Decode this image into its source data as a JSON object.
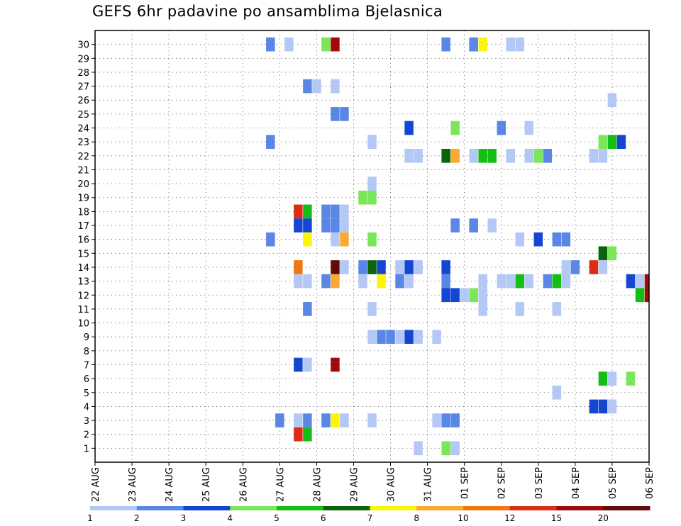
{
  "chart_data": {
    "type": "heatmap",
    "title": "GEFS 6hr padavine po ansamblima Bjelasnica",
    "x_labels": [
      "22 AUG",
      "23 AUG",
      "24 AUG",
      "25 AUG",
      "26 AUG",
      "27 AUG",
      "28 AUG",
      "29 AUG",
      "30 AUG",
      "31 AUG",
      "01 SEP",
      "02 SEP",
      "03 SEP",
      "04 SEP",
      "05 SEP",
      "06 SEP"
    ],
    "y_labels": [
      1,
      2,
      3,
      4,
      5,
      6,
      7,
      8,
      9,
      10,
      11,
      12,
      13,
      14,
      15,
      16,
      17,
      18,
      19,
      20,
      21,
      22,
      23,
      24,
      25,
      26,
      27,
      28,
      29,
      30
    ],
    "xlim_steps": [
      0,
      60
    ],
    "grid": true,
    "legend": {
      "position": "bottom",
      "labels": [
        "1",
        "2",
        "3",
        "4",
        "5",
        "6",
        "7",
        "8",
        "10",
        "12",
        "15",
        "20"
      ],
      "colors": [
        "#b4c8f5",
        "#5a87e6",
        "#1446d2",
        "#7ce65a",
        "#14be14",
        "#0a640a",
        "#faf50a",
        "#faaa32",
        "#f07814",
        "#dc2d14",
        "#a00a0a",
        "#640a0a"
      ]
    },
    "cells_note": "each cell: [member (y), 6-hour step index from 22 AUG 00z (x), color class 0-11]",
    "cells": [
      [
        30,
        19,
        1
      ],
      [
        30,
        21,
        0
      ],
      [
        30,
        25,
        3
      ],
      [
        30,
        26,
        10
      ],
      [
        30,
        38,
        1
      ],
      [
        30,
        41,
        1
      ],
      [
        30,
        42,
        6
      ],
      [
        30,
        45,
        0
      ],
      [
        30,
        46,
        0
      ],
      [
        27,
        23,
        1
      ],
      [
        27,
        24,
        0
      ],
      [
        27,
        26,
        0
      ],
      [
        26,
        56,
        0
      ],
      [
        25,
        26,
        1
      ],
      [
        25,
        27,
        1
      ],
      [
        24,
        34,
        2
      ],
      [
        24,
        39,
        3
      ],
      [
        24,
        44,
        1
      ],
      [
        24,
        47,
        0
      ],
      [
        23,
        19,
        1
      ],
      [
        23,
        30,
        0
      ],
      [
        23,
        55,
        3
      ],
      [
        23,
        56,
        4
      ],
      [
        23,
        57,
        2
      ],
      [
        22,
        34,
        0
      ],
      [
        22,
        35,
        0
      ],
      [
        22,
        38,
        5
      ],
      [
        22,
        39,
        7
      ],
      [
        22,
        41,
        0
      ],
      [
        22,
        42,
        4
      ],
      [
        22,
        43,
        4
      ],
      [
        22,
        45,
        0
      ],
      [
        22,
        47,
        0
      ],
      [
        22,
        48,
        3
      ],
      [
        22,
        49,
        1
      ],
      [
        22,
        54,
        0
      ],
      [
        22,
        55,
        0
      ],
      [
        20,
        30,
        0
      ],
      [
        19,
        29,
        3
      ],
      [
        19,
        30,
        3
      ],
      [
        18,
        22,
        9
      ],
      [
        18,
        23,
        4
      ],
      [
        18,
        25,
        1
      ],
      [
        18,
        26,
        1
      ],
      [
        18,
        27,
        0
      ],
      [
        17,
        22,
        2
      ],
      [
        17,
        23,
        2
      ],
      [
        17,
        25,
        1
      ],
      [
        17,
        26,
        1
      ],
      [
        17,
        27,
        0
      ],
      [
        17,
        39,
        1
      ],
      [
        17,
        41,
        1
      ],
      [
        17,
        43,
        0
      ],
      [
        16,
        19,
        1
      ],
      [
        16,
        23,
        6
      ],
      [
        16,
        26,
        0
      ],
      [
        16,
        27,
        7
      ],
      [
        16,
        30,
        3
      ],
      [
        16,
        46,
        0
      ],
      [
        16,
        48,
        2
      ],
      [
        16,
        50,
        1
      ],
      [
        16,
        51,
        1
      ],
      [
        15,
        55,
        5
      ],
      [
        15,
        56,
        3
      ],
      [
        14,
        22,
        8
      ],
      [
        14,
        26,
        11
      ],
      [
        14,
        27,
        0
      ],
      [
        14,
        29,
        1
      ],
      [
        14,
        30,
        5
      ],
      [
        14,
        31,
        2
      ],
      [
        14,
        33,
        0
      ],
      [
        14,
        34,
        2
      ],
      [
        14,
        35,
        0
      ],
      [
        14,
        38,
        2
      ],
      [
        14,
        51,
        0
      ],
      [
        14,
        52,
        1
      ],
      [
        14,
        54,
        9
      ],
      [
        14,
        55,
        0
      ],
      [
        13,
        22,
        0
      ],
      [
        13,
        23,
        0
      ],
      [
        13,
        25,
        1
      ],
      [
        13,
        26,
        7
      ],
      [
        13,
        29,
        0
      ],
      [
        13,
        31,
        6
      ],
      [
        13,
        33,
        1
      ],
      [
        13,
        34,
        0
      ],
      [
        13,
        38,
        1
      ],
      [
        13,
        42,
        0
      ],
      [
        13,
        44,
        0
      ],
      [
        13,
        45,
        0
      ],
      [
        13,
        46,
        4
      ],
      [
        13,
        47,
        0
      ],
      [
        13,
        49,
        1
      ],
      [
        13,
        50,
        4
      ],
      [
        13,
        51,
        0
      ],
      [
        13,
        58,
        2
      ],
      [
        13,
        59,
        0
      ],
      [
        13,
        60,
        10
      ],
      [
        12,
        38,
        2
      ],
      [
        12,
        39,
        2
      ],
      [
        12,
        40,
        0
      ],
      [
        12,
        41,
        3
      ],
      [
        12,
        42,
        0
      ],
      [
        12,
        59,
        4
      ],
      [
        12,
        60,
        10
      ],
      [
        11,
        23,
        1
      ],
      [
        11,
        30,
        0
      ],
      [
        11,
        42,
        0
      ],
      [
        11,
        46,
        0
      ],
      [
        11,
        50,
        0
      ],
      [
        9,
        30,
        0
      ],
      [
        9,
        31,
        1
      ],
      [
        9,
        32,
        1
      ],
      [
        9,
        33,
        0
      ],
      [
        9,
        34,
        2
      ],
      [
        9,
        35,
        0
      ],
      [
        9,
        37,
        0
      ],
      [
        7,
        22,
        2
      ],
      [
        7,
        23,
        0
      ],
      [
        7,
        26,
        10
      ],
      [
        6,
        55,
        4
      ],
      [
        6,
        56,
        0
      ],
      [
        6,
        58,
        3
      ],
      [
        5,
        50,
        0
      ],
      [
        4,
        54,
        2
      ],
      [
        4,
        55,
        2
      ],
      [
        4,
        56,
        0
      ],
      [
        3,
        20,
        1
      ],
      [
        3,
        22,
        0
      ],
      [
        3,
        23,
        1
      ],
      [
        3,
        25,
        1
      ],
      [
        3,
        26,
        6
      ],
      [
        3,
        27,
        0
      ],
      [
        3,
        30,
        0
      ],
      [
        3,
        37,
        0
      ],
      [
        3,
        38,
        1
      ],
      [
        3,
        39,
        1
      ],
      [
        2,
        22,
        9
      ],
      [
        2,
        23,
        4
      ],
      [
        1,
        35,
        0
      ],
      [
        1,
        38,
        3
      ],
      [
        1,
        39,
        0
      ]
    ]
  }
}
